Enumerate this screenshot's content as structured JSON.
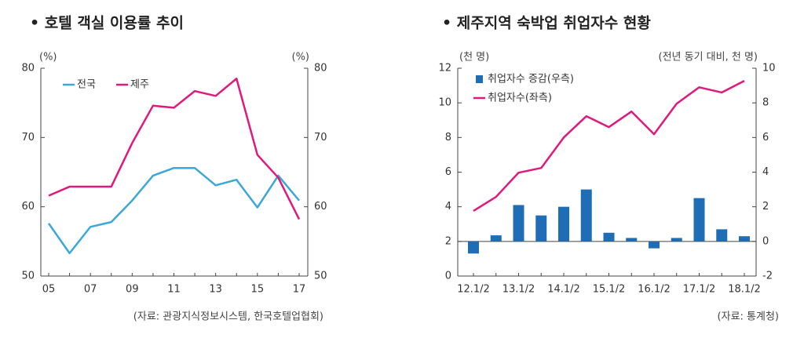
{
  "chart_data": [
    {
      "type": "line",
      "title": "• 호텔 객실 이용률 추이",
      "y_unit": "(%)",
      "y2_unit": "(%)",
      "source": "(자료: 관광지식정보시스템, 한국호텔업협회)",
      "categories": [
        "05",
        null,
        "07",
        null,
        "09",
        null,
        "11",
        null,
        "13",
        null,
        "15",
        null,
        "17"
      ],
      "series": [
        {
          "name": "전국",
          "color": "#3aa8d8",
          "values": [
            57.6,
            53.3,
            57.1,
            57.8,
            60.9,
            64.5,
            65.6,
            65.6,
            63.1,
            63.9,
            59.9,
            64.5,
            60.9
          ]
        },
        {
          "name": "제주",
          "color": "#e0197d",
          "values": [
            61.6,
            62.9,
            62.9,
            62.9,
            69.2,
            74.6,
            74.3,
            76.7,
            76.0,
            78.5,
            67.5,
            64.2,
            58.2
          ]
        }
      ],
      "ylim": [
        50,
        80
      ],
      "yticks": [
        50,
        60,
        70,
        80
      ],
      "y2lim": [
        50,
        80
      ],
      "y2ticks": [
        50,
        60,
        70,
        80
      ],
      "legend": "top-left"
    },
    {
      "type": "bar-line",
      "title": "• 제주지역 숙박업 취업자수 현황",
      "y_unit": "(천 명)",
      "y2_unit": "(전년 동기 대비, 천 명)",
      "source": "(자료: 통계청)",
      "categories": [
        "12.1/2",
        null,
        "13.1/2",
        null,
        "14.1/2",
        null,
        "15.1/2",
        null,
        "16.1/2",
        null,
        "17.1/2",
        null,
        "18.1/2"
      ],
      "series": [
        {
          "name": "취업자수 증감(우측)",
          "kind": "bar",
          "axis": "y2",
          "color": "#1f6eb5",
          "values": [
            -0.7,
            0.35,
            2.1,
            1.5,
            2.0,
            3.0,
            0.5,
            0.2,
            -0.4,
            0.2,
            2.5,
            0.7,
            0.3
          ]
        },
        {
          "name": "취업자수(좌측)",
          "kind": "line",
          "color": "#e0197d",
          "values": [
            3.76,
            4.57,
            5.97,
            6.24,
            8.0,
            9.23,
            8.6,
            9.5,
            8.19,
            9.95,
            10.9,
            10.6,
            11.27
          ]
        }
      ],
      "ylim": [
        0,
        12
      ],
      "yticks": [
        0,
        2,
        4,
        6,
        8,
        10,
        12
      ],
      "y2lim": [
        -2,
        10
      ],
      "y2ticks": [
        -2,
        0,
        2,
        4,
        6,
        8,
        10
      ],
      "legend": "top-left"
    }
  ]
}
